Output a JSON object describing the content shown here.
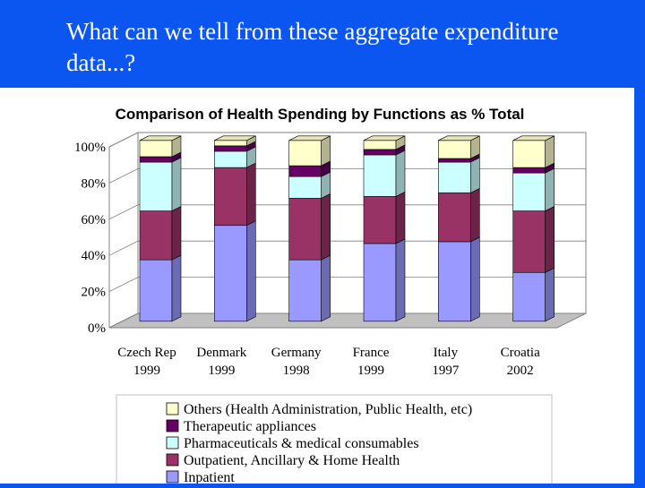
{
  "slide": {
    "title": "What can we tell from these aggregate expenditure data...?"
  },
  "chart_data": {
    "type": "bar",
    "stacked": true,
    "three_d": true,
    "title": "Comparison of Health Spending by Functions as % Total",
    "xlabel": "",
    "ylabel": "",
    "ylim": [
      0,
      100
    ],
    "y_ticks": [
      "0%",
      "20%",
      "40%",
      "60%",
      "80%",
      "100%"
    ],
    "grid": true,
    "legend_position": "bottom",
    "categories": [
      [
        "Czech Rep",
        "1999"
      ],
      [
        "Denmark",
        "1999"
      ],
      [
        "Germany",
        "1998"
      ],
      [
        "France",
        "1999"
      ],
      [
        "Italy",
        "1997"
      ],
      [
        "Croatia",
        "2002"
      ]
    ],
    "series": [
      {
        "name": "Inpatient",
        "color": "#9999ff",
        "values": [
          34,
          53,
          34,
          43,
          44,
          27
        ]
      },
      {
        "name": "Outpatient, Ancillary & Home Health",
        "color": "#993366",
        "values": [
          27,
          32,
          34,
          26,
          27,
          34
        ]
      },
      {
        "name": "Pharmaceuticals & medical consumables",
        "color": "#ccffff",
        "values": [
          27,
          9,
          12,
          23,
          17,
          21
        ]
      },
      {
        "name": "Therapeutic appliances",
        "color": "#660066",
        "values": [
          3,
          3,
          6,
          3,
          2,
          3
        ]
      },
      {
        "name": "Others (Health Administration, Public Health, etc)",
        "color": "#ffffcc",
        "values": [
          9,
          3,
          14,
          5,
          10,
          15
        ]
      }
    ],
    "legend_order": [
      4,
      3,
      2,
      1,
      0
    ]
  }
}
